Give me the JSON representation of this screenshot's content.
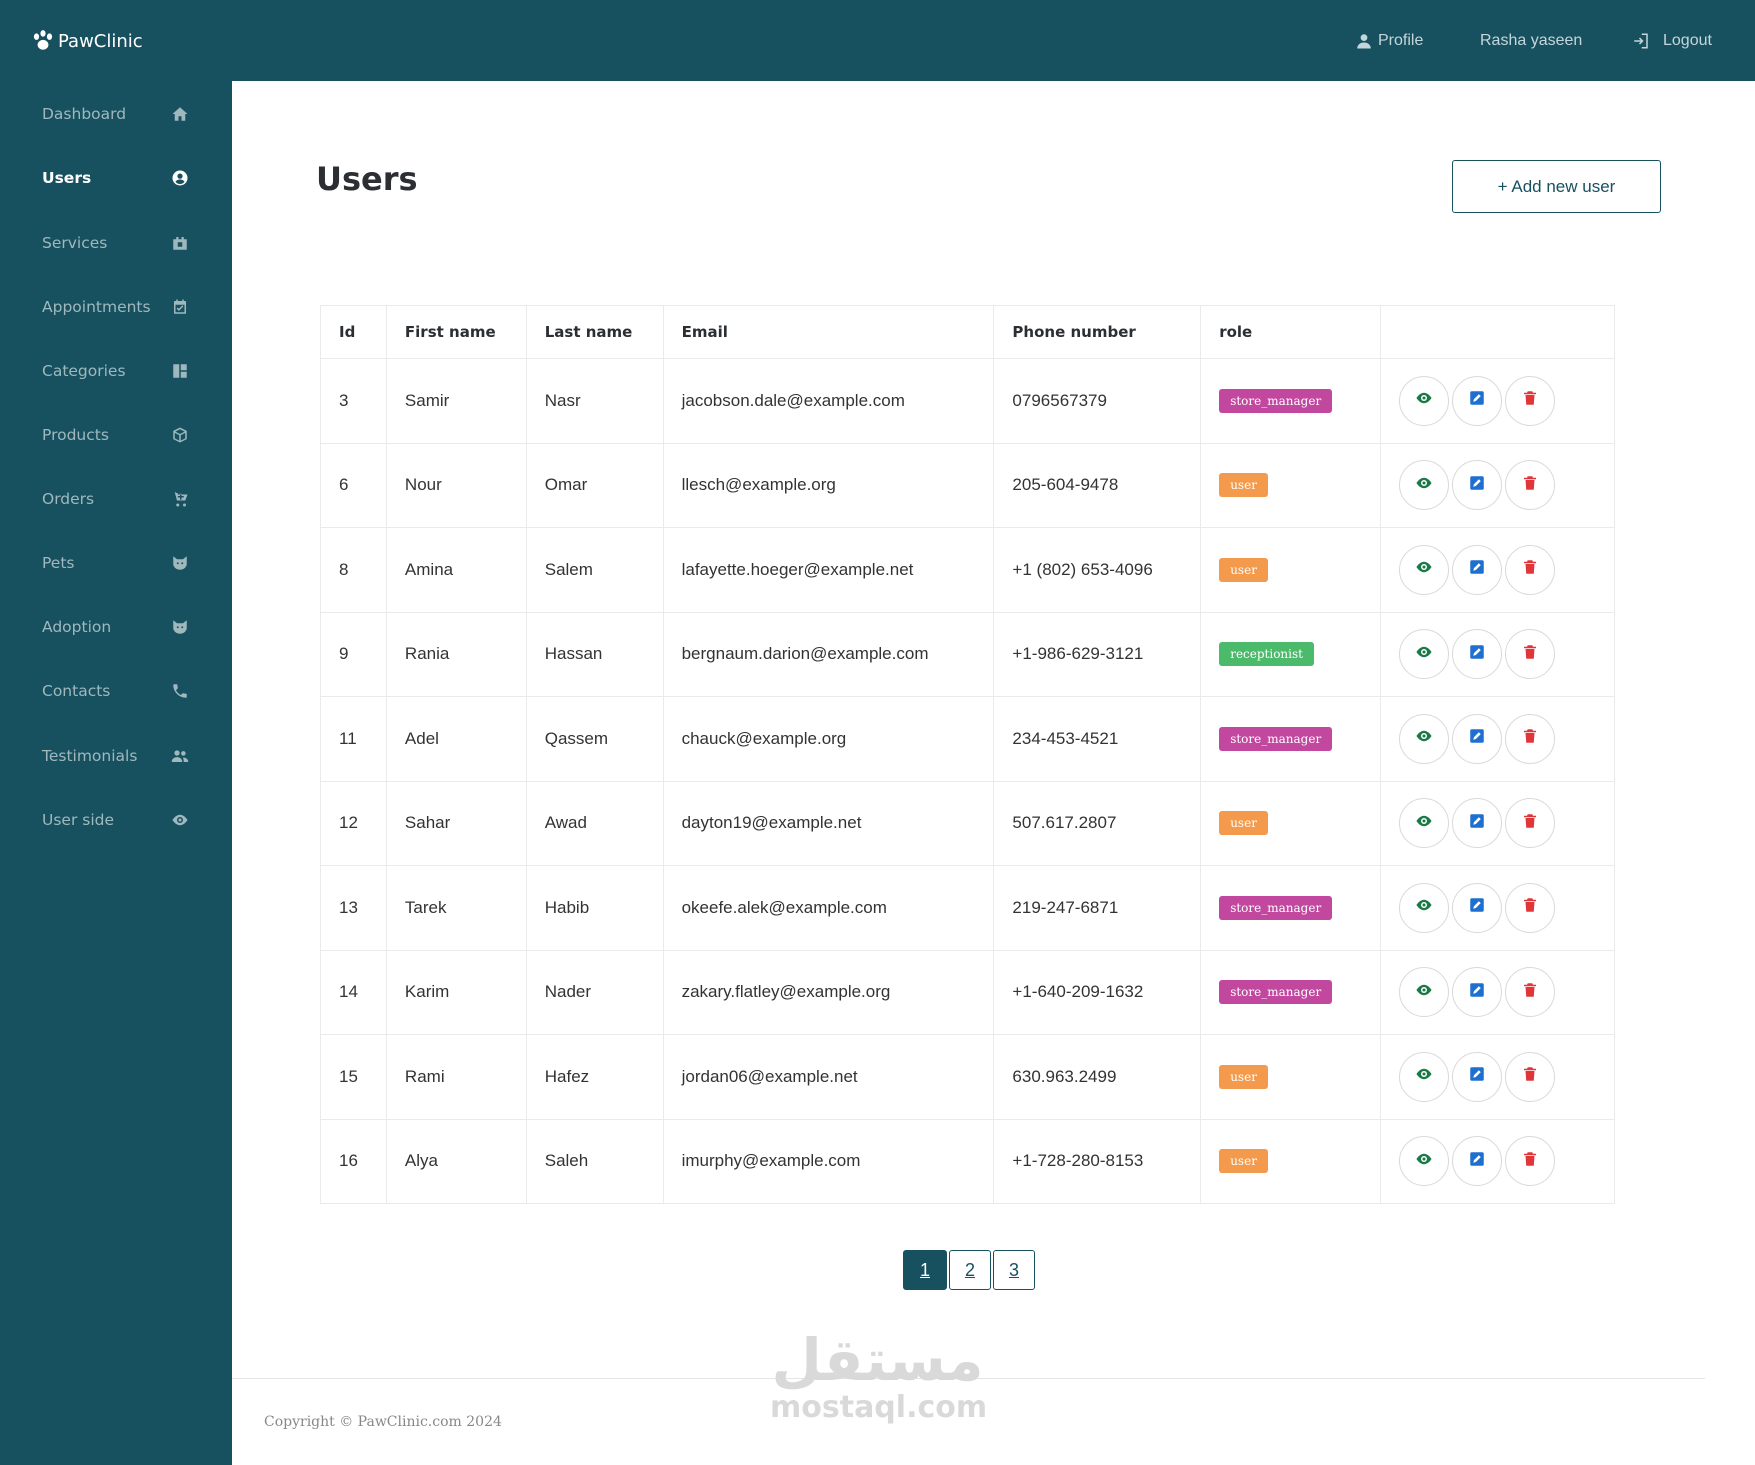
{
  "app": {
    "brand": "PawClinic"
  },
  "topnav": {
    "profile": "Profile",
    "user_name": "Rasha yaseen",
    "logout": "Logout"
  },
  "sidebar": {
    "items": [
      {
        "label": "Dashboard",
        "icon": "home-icon"
      },
      {
        "label": "Users",
        "icon": "user-circle-icon",
        "active": true
      },
      {
        "label": "Services",
        "icon": "services-icon"
      },
      {
        "label": "Appointments",
        "icon": "calendar-check-icon"
      },
      {
        "label": "Categories",
        "icon": "grid-icon"
      },
      {
        "label": "Products",
        "icon": "box-icon"
      },
      {
        "label": "Orders",
        "icon": "cart-icon"
      },
      {
        "label": "Pets",
        "icon": "cat-icon"
      },
      {
        "label": "Adoption",
        "icon": "cat-icon"
      },
      {
        "label": "Contacts",
        "icon": "phone-icon"
      },
      {
        "label": "Testimonials",
        "icon": "users-icon"
      },
      {
        "label": "User side",
        "icon": "eye-icon"
      }
    ]
  },
  "main": {
    "title": "Users",
    "add_button": "+ Add new user",
    "table": {
      "headers": [
        "Id",
        "First name",
        "Last name",
        "Email",
        "Phone number",
        "role",
        ""
      ],
      "rows": [
        {
          "id": "3",
          "first": "Samir",
          "last": "Nasr",
          "email": "jacobson.dale@example.com",
          "phone": "0796567379",
          "role": "store_manager"
        },
        {
          "id": "6",
          "first": "Nour",
          "last": "Omar",
          "email": "llesch@example.org",
          "phone": "205-604-9478",
          "role": "user"
        },
        {
          "id": "8",
          "first": "Amina",
          "last": "Salem",
          "email": "lafayette.hoeger@example.net",
          "phone": "+1 (802) 653-4096",
          "role": "user"
        },
        {
          "id": "9",
          "first": "Rania",
          "last": "Hassan",
          "email": "bergnaum.darion@example.com",
          "phone": "+1-986-629-3121",
          "role": "receptionist"
        },
        {
          "id": "11",
          "first": "Adel",
          "last": "Qassem",
          "email": "chauck@example.org",
          "phone": "234-453-4521",
          "role": "store_manager"
        },
        {
          "id": "12",
          "first": "Sahar",
          "last": "Awad",
          "email": "dayton19@example.net",
          "phone": "507.617.2807",
          "role": "user"
        },
        {
          "id": "13",
          "first": "Tarek",
          "last": "Habib",
          "email": "okeefe.alek@example.com",
          "phone": "219-247-6871",
          "role": "store_manager"
        },
        {
          "id": "14",
          "first": "Karim",
          "last": "Nader",
          "email": "zakary.flatley@example.org",
          "phone": "+1-640-209-1632",
          "role": "store_manager"
        },
        {
          "id": "15",
          "first": "Rami",
          "last": "Hafez",
          "email": "jordan06@example.net",
          "phone": "630.963.2499",
          "role": "user"
        },
        {
          "id": "16",
          "first": "Alya",
          "last": "Saleh",
          "email": "imurphy@example.com",
          "phone": "+1-728-280-8153",
          "role": "user"
        }
      ]
    },
    "pagination": {
      "pages": [
        "1",
        "2",
        "3"
      ],
      "current": "1"
    }
  },
  "footer": {
    "copyright": "Copyright © PawClinic.com 2024"
  },
  "watermark": {
    "arabic": "مستقل",
    "latin": "mostaql.com"
  },
  "colors": {
    "primary": "#17515f",
    "store_manager": "#c2479f",
    "user": "#f39a4c",
    "receptionist": "#4cba6b",
    "view": "#1a7a45",
    "edit": "#1f6fd1",
    "delete": "#e0363a"
  }
}
